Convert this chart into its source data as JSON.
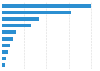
{
  "values": [
    100,
    78,
    42,
    33,
    16,
    12,
    9,
    7,
    5,
    3
  ],
  "bar_color": "#2b8fd1",
  "background_color": "#ffffff",
  "grid_color": "#d9d9d9",
  "xlim_max": 108,
  "bar_height": 0.55,
  "figsize": [
    1.0,
    0.71
  ],
  "dpi": 100
}
